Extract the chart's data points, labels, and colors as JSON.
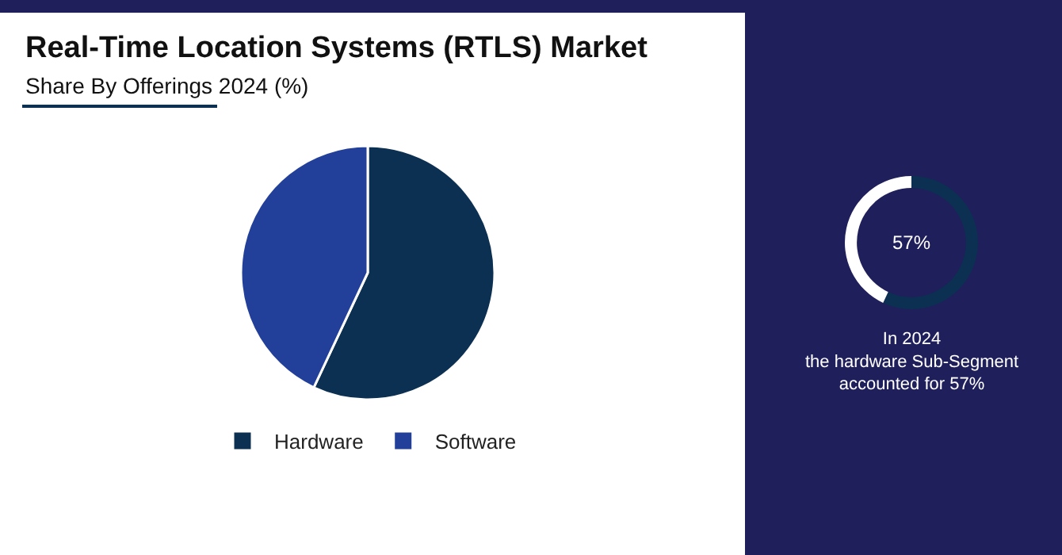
{
  "chart_data": [
    {
      "type": "pie",
      "title": "Real-Time Location Systems (RTLS) Market",
      "subtitle": "Share By Offerings 2024 (%)",
      "categories": [
        "Hardware",
        "Software"
      ],
      "values": [
        57,
        43
      ],
      "colors": [
        "#0c3052",
        "#22409a"
      ],
      "legend": "bottom"
    },
    {
      "type": "donut",
      "categories": [
        null,
        null
      ],
      "values": [
        57,
        43
      ],
      "colors": [
        "#0c3052",
        "#ffffff"
      ],
      "annotations": [
        "57%",
        "In 2024\nthe hardware Sub-Segment\naccounted for 57%"
      ]
    }
  ]
}
